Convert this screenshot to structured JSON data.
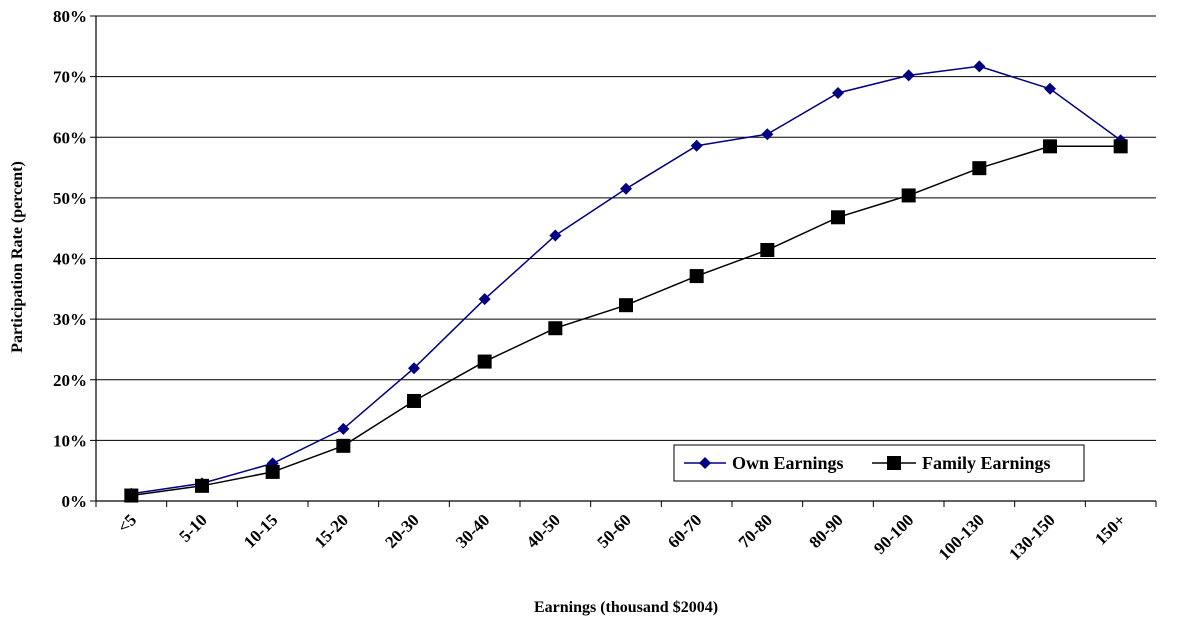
{
  "chart_data": {
    "type": "line",
    "title": "",
    "xlabel": "Earnings (thousand $2004)",
    "ylabel": "Participation Rate (percent)",
    "categories": [
      "<5",
      "5-10",
      "10-15",
      "15-20",
      "20-30",
      "30-40",
      "40-50",
      "50-60",
      "60-70",
      "70-80",
      "80-90",
      "90-100",
      "100-130",
      "130-150",
      "150+"
    ],
    "ylim": [
      0,
      80
    ],
    "yticks": [
      "0%",
      "10%",
      "20%",
      "30%",
      "40%",
      "50%",
      "60%",
      "70%",
      "80%"
    ],
    "grid": true,
    "legend_position": "bottom-right",
    "series": [
      {
        "name": "Own Earnings",
        "color": "#000080",
        "marker": "diamond",
        "values": [
          1.2,
          2.9,
          6.2,
          11.9,
          21.9,
          33.3,
          43.8,
          51.5,
          58.6,
          60.5,
          67.3,
          70.2,
          71.7,
          68.0,
          59.5
        ]
      },
      {
        "name": "Family Earnings",
        "color": "#000000",
        "marker": "square",
        "values": [
          0.9,
          2.5,
          4.8,
          9.1,
          16.5,
          23.0,
          28.5,
          32.3,
          37.1,
          41.4,
          46.8,
          50.4,
          54.9,
          58.5,
          58.5
        ]
      }
    ]
  }
}
